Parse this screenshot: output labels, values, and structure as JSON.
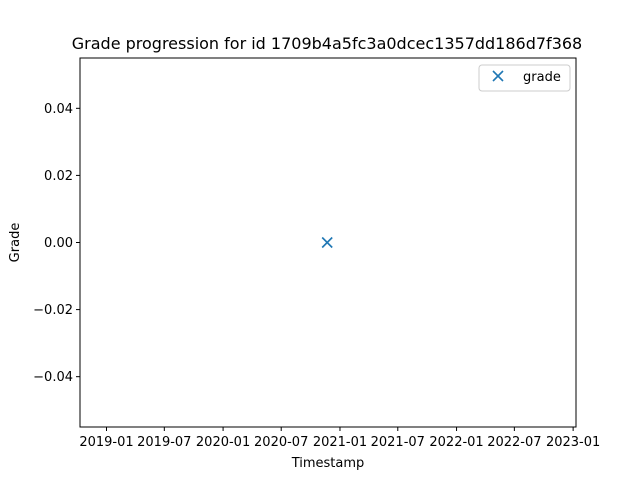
{
  "chart_data": {
    "type": "scatter",
    "title": "Grade progression for id 1709b4a5fc3a0dcec1357dd186d7f368",
    "xlabel": "Timestamp",
    "ylabel": "Grade",
    "x_ticks": [
      "2019-01",
      "2019-07",
      "2020-01",
      "2020-07",
      "2021-01",
      "2021-07",
      "2022-01",
      "2022-07",
      "2023-01"
    ],
    "y_ticks": [
      "0.04",
      "0.02",
      "0.00",
      "−0.02",
      "−0.04"
    ],
    "y_tick_values": [
      0.04,
      0.02,
      0.0,
      -0.02,
      -0.04
    ],
    "ylim": [
      -0.055,
      0.055
    ],
    "xlim": [
      "2018-10-10",
      "2023-01-10"
    ],
    "grid": false,
    "legend_position": "top-right",
    "marker": "x",
    "series": [
      {
        "name": "grade",
        "color": "#1f77b4",
        "points": [
          {
            "x": "2020-11-22",
            "y": 0.0
          }
        ]
      }
    ]
  }
}
